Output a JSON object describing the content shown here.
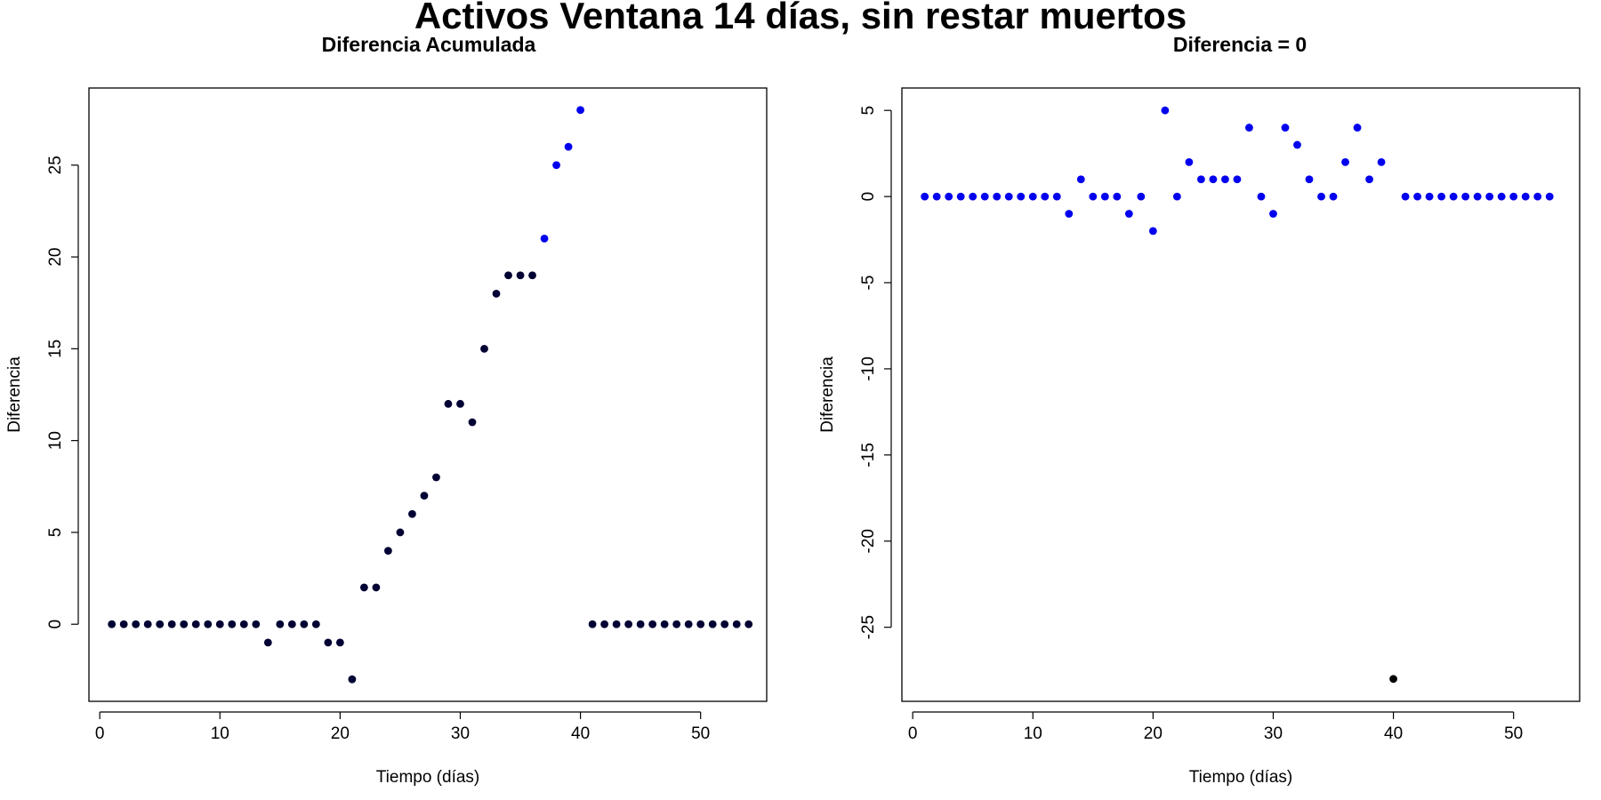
{
  "figure": {
    "title": "Activos Ventana 14 días, sin restar muertos"
  },
  "chart_data": [
    {
      "type": "scatter",
      "title": "Diferencia Acumulada",
      "xlabel": "Tiempo (días)",
      "ylabel": "Diferencia",
      "xlim": [
        -0.9,
        55.5
      ],
      "ylim": [
        -4.2,
        29.2
      ],
      "xticks": [
        0,
        10,
        20,
        30,
        40,
        50
      ],
      "yticks": [
        0,
        5,
        10,
        15,
        20,
        25
      ],
      "grid": false,
      "colors": {
        "dark": "#000033",
        "blue": "#0000ee",
        "frame": "#000000"
      },
      "series": [
        {
          "color_key": "dark",
          "x": [
            1,
            2,
            3,
            4,
            5,
            6,
            7,
            8,
            9,
            10,
            11,
            12,
            13,
            14,
            15,
            16,
            17,
            18,
            19,
            20,
            21,
            22,
            23,
            24,
            25,
            26,
            27,
            28,
            29,
            30,
            31,
            32,
            33,
            34,
            35,
            36,
            41,
            42,
            43,
            44,
            45,
            46,
            47,
            48,
            49,
            50,
            51,
            52,
            53,
            54
          ],
          "y": [
            0,
            0,
            0,
            0,
            0,
            0,
            0,
            0,
            0,
            0,
            0,
            0,
            0,
            -1,
            0,
            0,
            0,
            0,
            -1,
            -1,
            -3,
            2,
            2,
            4,
            5,
            6,
            7,
            8,
            12,
            12,
            11,
            15,
            18,
            19,
            19,
            19,
            0,
            0,
            0,
            0,
            0,
            0,
            0,
            0,
            0,
            0,
            0,
            0,
            0,
            0
          ]
        },
        {
          "color_key": "blue",
          "x": [
            37,
            38,
            39,
            40
          ],
          "y": [
            21,
            25,
            26,
            28
          ]
        }
      ]
    },
    {
      "type": "scatter",
      "title": "Diferencia = 0",
      "xlabel": "Tiempo (días)",
      "ylabel": "Diferencia",
      "xlim": [
        -0.9,
        55.5
      ],
      "ylim": [
        -29.3,
        6.3
      ],
      "xticks": [
        0,
        10,
        20,
        30,
        40,
        50
      ],
      "yticks": [
        5,
        0,
        -5,
        -10,
        -15,
        -20,
        -25
      ],
      "grid": false,
      "colors": {
        "dark": "#000000",
        "blue": "#0000ee",
        "frame": "#000000"
      },
      "series": [
        {
          "color_key": "blue",
          "x": [
            1,
            2,
            3,
            4,
            5,
            6,
            7,
            8,
            9,
            10,
            11,
            12,
            13,
            14,
            15,
            16,
            17,
            18,
            19,
            20,
            21,
            22,
            23,
            24,
            25,
            26,
            27,
            28,
            29,
            30,
            31,
            32,
            33,
            34,
            35,
            36,
            37,
            38,
            39,
            41,
            42,
            43,
            44,
            45,
            46,
            47,
            48,
            49,
            50,
            51,
            52,
            53
          ],
          "y": [
            0,
            0,
            0,
            0,
            0,
            0,
            0,
            0,
            0,
            0,
            0,
            0,
            -1,
            1,
            0,
            0,
            0,
            -1,
            0,
            -2,
            5,
            0,
            2,
            1,
            1,
            1,
            1,
            4,
            0,
            -1,
            4,
            3,
            1,
            0,
            0,
            2,
            4,
            1,
            2,
            0,
            0,
            0,
            0,
            0,
            0,
            0,
            0,
            0,
            0,
            0,
            0,
            0
          ]
        },
        {
          "color_key": "dark",
          "x": [
            40
          ],
          "y": [
            -28
          ]
        }
      ]
    }
  ]
}
